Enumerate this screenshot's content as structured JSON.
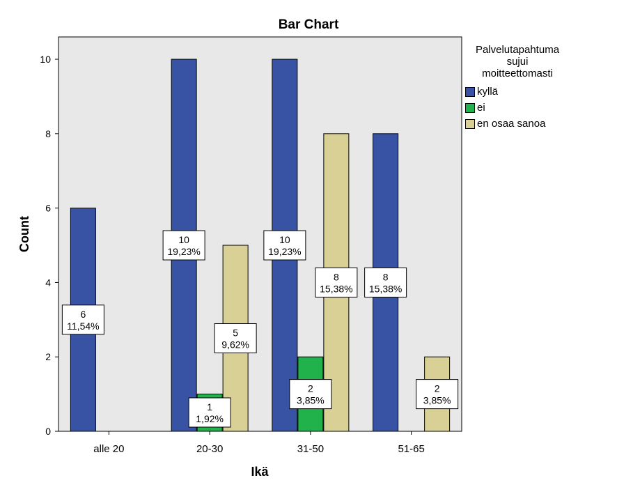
{
  "chart_data": {
    "type": "bar",
    "title": "Bar Chart",
    "xlabel": "Ikä",
    "ylabel": "Count",
    "categories": [
      "alle 20",
      "20-30",
      "31-50",
      "51-65"
    ],
    "ylim": [
      0,
      10.6
    ],
    "yticks": [
      "0",
      "2",
      "4",
      "6",
      "8",
      "10"
    ],
    "legend_title": [
      "Palvelutapahtuma",
      "sujui",
      "moitteettomasti"
    ],
    "legend_position": "right",
    "plot_background": "#e8e8e8",
    "series": [
      {
        "name": "kyllä",
        "color": "#3953a4",
        "values": [
          6,
          10,
          10,
          8
        ],
        "labels": [
          [
            "6",
            "11,54%"
          ],
          [
            "10",
            "19,23%"
          ],
          [
            "10",
            "19,23%"
          ],
          [
            "8",
            "15,38%"
          ]
        ]
      },
      {
        "name": "ei",
        "color": "#21b24b",
        "values": [
          null,
          1,
          2,
          null
        ],
        "labels": [
          null,
          [
            "1",
            "1,92%"
          ],
          [
            "2",
            "3,85%"
          ],
          null
        ]
      },
      {
        "name": "en osaa sanoa",
        "color": "#d8d095",
        "values": [
          null,
          5,
          8,
          2
        ],
        "labels": [
          null,
          [
            "5",
            "9,62%"
          ],
          [
            "8",
            "15,38%"
          ],
          [
            "2",
            "3,85%"
          ]
        ]
      }
    ]
  }
}
